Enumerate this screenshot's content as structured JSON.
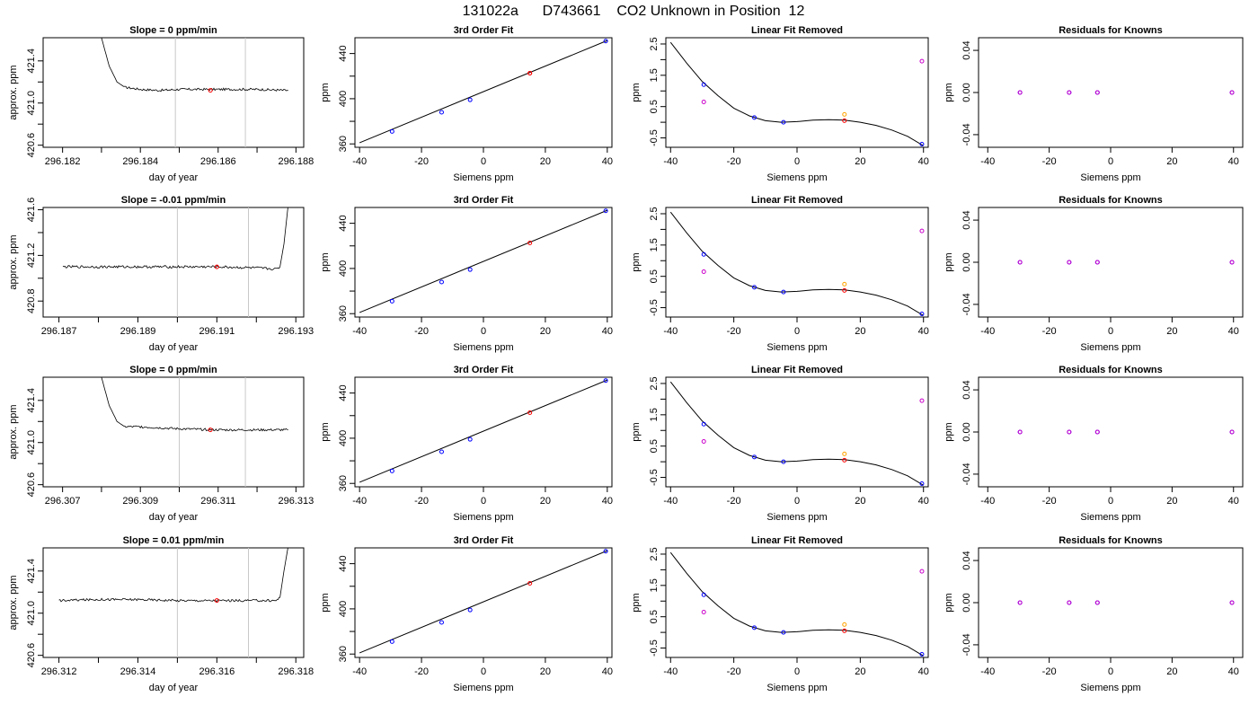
{
  "title": "131022a      D743661    CO2 Unknown in Position  12",
  "colors": {
    "trace": "#000000",
    "window": "#c8c8c8",
    "known": "#0000ff",
    "unknown": "#ff0000",
    "residual_a": "#cc00cc",
    "residual_b": "#ffa500"
  },
  "chart_data": [
    {
      "type": "line",
      "panel": "trace",
      "row": 0,
      "title": "Slope =  0  ppm/min",
      "xlabel": "day of year",
      "ylabel": "approx. ppm",
      "xlim": [
        296.1815,
        296.1882
      ],
      "ylim": [
        420.58,
        421.62
      ],
      "xticks": [
        296.182,
        296.184,
        296.186,
        296.188
      ],
      "xtick_labels": [
        "296.182",
        "296.184",
        "296.186",
        "296.188"
      ],
      "yticks": [
        420.6,
        421.0,
        421.4
      ],
      "ytick_labels": [
        "420.6",
        "421.0",
        "421.4"
      ],
      "trace_x": [
        296.183,
        296.1832,
        296.1834,
        296.1836,
        296.184,
        296.1845,
        296.185,
        296.186,
        296.187,
        296.1878
      ],
      "trace_y": [
        421.62,
        421.35,
        421.2,
        421.15,
        421.13,
        421.12,
        421.13,
        421.13,
        421.13,
        421.12
      ],
      "window_x": [
        296.1849,
        296.1867
      ],
      "marker": {
        "x": 296.1858,
        "y": 421.12
      }
    },
    {
      "type": "scatter",
      "panel": "fit",
      "row": 0,
      "title": "3rd Order Fit",
      "xlabel": "Siemens ppm",
      "ylabel": "ppm",
      "xlim": [
        -41.5,
        41.5
      ],
      "ylim": [
        357,
        454
      ],
      "xticks": [
        -40,
        -20,
        0,
        20,
        40
      ],
      "xtick_labels": [
        "-40",
        "-20",
        "0",
        "20",
        "40"
      ],
      "yticks": [
        360,
        400,
        440
      ],
      "ytick_labels": [
        "360",
        "400",
        "440"
      ],
      "knowns": {
        "x": [
          -29.5,
          -13.5,
          -4.3,
          39.5
        ],
        "y": [
          371,
          388,
          399,
          451
        ]
      },
      "unknown": {
        "x": [
          15,
          15
        ],
        "y": [
          422.6,
          422.6
        ]
      },
      "line": {
        "x": [
          -40,
          40
        ],
        "y": [
          361,
          451.5
        ]
      }
    },
    {
      "type": "scatter",
      "panel": "linear_removed",
      "row": 0,
      "title": "Linear Fit Removed",
      "xlabel": "Siemens ppm",
      "ylabel": "ppm",
      "xlim": [
        -41.5,
        41.5
      ],
      "ylim": [
        -0.8,
        2.7
      ],
      "xticks": [
        -40,
        -20,
        0,
        20,
        40
      ],
      "xtick_labels": [
        "-40",
        "-20",
        "0",
        "20",
        "40"
      ],
      "yticks": [
        -0.5,
        0.5,
        1.5,
        2.5
      ],
      "ytick_labels": [
        "-0.5",
        "0.5",
        "1.5",
        "2.5"
      ],
      "knowns": {
        "x": [
          -29.5,
          -13.5,
          -4.3,
          39.5
        ],
        "y": [
          1.2,
          0.15,
          0.0,
          -0.7
        ]
      },
      "unknown": {
        "x": [
          15
        ],
        "y": [
          0.05
        ]
      },
      "residual_a": {
        "x": [
          -29.5,
          39.5
        ],
        "y": [
          0.65,
          1.95
        ]
      },
      "residual_b": {
        "x": [
          15
        ],
        "y": [
          0.25
        ]
      },
      "curve": {
        "x": [
          -40,
          -35,
          -30,
          -25,
          -20,
          -15,
          -10,
          -5,
          0,
          5,
          10,
          15,
          20,
          25,
          30,
          35,
          40
        ],
        "y": [
          2.55,
          1.9,
          1.3,
          0.85,
          0.45,
          0.2,
          0.05,
          0.0,
          0.02,
          0.07,
          0.08,
          0.07,
          0.0,
          -0.1,
          -0.25,
          -0.45,
          -0.75
        ]
      }
    },
    {
      "type": "scatter",
      "panel": "residuals",
      "row": 0,
      "title": "Residuals for Knowns",
      "xlabel": "Siemens ppm",
      "ylabel": "ppm",
      "xlim": [
        -43,
        43
      ],
      "ylim": [
        -0.052,
        0.052
      ],
      "xticks": [
        -40,
        -20,
        0,
        20,
        40
      ],
      "xtick_labels": [
        "-40",
        "-20",
        "0",
        "20",
        "40"
      ],
      "yticks": [
        -0.04,
        0.0,
        0.04
      ],
      "ytick_labels": [
        "-0.04",
        "0.00",
        "0.04"
      ],
      "knowns": {
        "x": [
          -29.5,
          -13.5,
          -4.3,
          39.5
        ],
        "y": [
          0,
          0,
          0,
          0
        ]
      }
    },
    {
      "type": "line",
      "panel": "trace",
      "row": 1,
      "title": "Slope =  -0.01  ppm/min",
      "xlabel": "day of year",
      "ylabel": "approx. ppm",
      "xlim": [
        296.1866,
        296.1932
      ],
      "ylim": [
        420.66,
        421.62
      ],
      "xticks": [
        296.187,
        296.189,
        296.191,
        296.193
      ],
      "xtick_labels": [
        "296.187",
        "296.189",
        "296.191",
        "296.193"
      ],
      "yticks": [
        420.8,
        421.2,
        421.6
      ],
      "ytick_labels": [
        "420.8",
        "421.2",
        "421.6"
      ],
      "trace_x": [
        296.1871,
        296.188,
        296.189,
        296.19,
        296.191,
        296.192,
        296.1925,
        296.1926,
        296.1927,
        296.1928
      ],
      "trace_y": [
        421.1,
        421.1,
        421.1,
        421.1,
        421.1,
        421.09,
        421.08,
        421.1,
        421.3,
        421.62
      ],
      "window_x": [
        296.19,
        296.1918
      ],
      "marker": {
        "x": 296.191,
        "y": 421.1
      }
    },
    {
      "type": "scatter",
      "panel": "fit",
      "row": 1,
      "title": "3rd Order Fit",
      "xlabel": "Siemens ppm",
      "ylabel": "ppm",
      "xlim": [
        -41.5,
        41.5
      ],
      "ylim": [
        357,
        454
      ],
      "xticks": [
        -40,
        -20,
        0,
        20,
        40
      ],
      "xtick_labels": [
        "-40",
        "-20",
        "0",
        "20",
        "40"
      ],
      "yticks": [
        360,
        400,
        440
      ],
      "ytick_labels": [
        "360",
        "400",
        "440"
      ],
      "knowns": {
        "x": [
          -29.5,
          -13.5,
          -4.3,
          39.5
        ],
        "y": [
          371,
          388,
          399,
          451
        ]
      },
      "unknown": {
        "x": [
          15
        ],
        "y": [
          422.6
        ]
      },
      "line": {
        "x": [
          -40,
          40
        ],
        "y": [
          361,
          451.5
        ]
      }
    },
    {
      "type": "scatter",
      "panel": "linear_removed",
      "row": 1,
      "title": "Linear Fit Removed",
      "xlabel": "Siemens ppm",
      "ylabel": "ppm",
      "xlim": [
        -41.5,
        41.5
      ],
      "ylim": [
        -0.8,
        2.7
      ],
      "xticks": [
        -40,
        -20,
        0,
        20,
        40
      ],
      "xtick_labels": [
        "-40",
        "-20",
        "0",
        "20",
        "40"
      ],
      "yticks": [
        -0.5,
        0.5,
        1.5,
        2.5
      ],
      "ytick_labels": [
        "-0.5",
        "0.5",
        "1.5",
        "2.5"
      ],
      "knowns": {
        "x": [
          -29.5,
          -13.5,
          -4.3,
          39.5
        ],
        "y": [
          1.2,
          0.15,
          0.0,
          -0.7
        ]
      },
      "unknown": {
        "x": [
          15
        ],
        "y": [
          0.05
        ]
      },
      "residual_a": {
        "x": [
          -29.5,
          39.5
        ],
        "y": [
          0.65,
          1.95
        ]
      },
      "residual_b": {
        "x": [
          15
        ],
        "y": [
          0.25
        ]
      },
      "curve": {
        "x": [
          -40,
          -35,
          -30,
          -25,
          -20,
          -15,
          -10,
          -5,
          0,
          5,
          10,
          15,
          20,
          25,
          30,
          35,
          40
        ],
        "y": [
          2.55,
          1.9,
          1.3,
          0.85,
          0.45,
          0.2,
          0.05,
          0.0,
          0.02,
          0.07,
          0.08,
          0.07,
          0.0,
          -0.1,
          -0.25,
          -0.45,
          -0.75
        ]
      }
    },
    {
      "type": "scatter",
      "panel": "residuals",
      "row": 1,
      "title": "Residuals for Knowns",
      "xlabel": "Siemens ppm",
      "ylabel": "ppm",
      "xlim": [
        -43,
        43
      ],
      "ylim": [
        -0.052,
        0.052
      ],
      "xticks": [
        -40,
        -20,
        0,
        20,
        40
      ],
      "xtick_labels": [
        "-40",
        "-20",
        "0",
        "20",
        "40"
      ],
      "yticks": [
        -0.04,
        0.0,
        0.04
      ],
      "ytick_labels": [
        "-0.04",
        "0.00",
        "0.04"
      ],
      "knowns": {
        "x": [
          -29.5,
          -13.5,
          -4.3,
          39.5
        ],
        "y": [
          0,
          0,
          0,
          0
        ]
      }
    },
    {
      "type": "line",
      "panel": "trace",
      "row": 2,
      "title": "Slope =  0  ppm/min",
      "xlabel": "day of year",
      "ylabel": "approx. ppm",
      "xlim": [
        296.3065,
        296.3132
      ],
      "ylim": [
        420.58,
        421.62
      ],
      "xticks": [
        296.307,
        296.309,
        296.311,
        296.313
      ],
      "xtick_labels": [
        "296.307",
        "296.309",
        "296.311",
        "296.313"
      ],
      "yticks": [
        420.6,
        421.0,
        421.4
      ],
      "ytick_labels": [
        "420.6",
        "421.0",
        "421.4"
      ],
      "trace_x": [
        296.308,
        296.3082,
        296.3084,
        296.3086,
        296.309,
        296.3095,
        296.31,
        296.311,
        296.312,
        296.3128
      ],
      "trace_y": [
        421.62,
        421.35,
        421.2,
        421.15,
        421.15,
        421.14,
        421.13,
        421.12,
        421.12,
        421.12
      ],
      "window_x": [
        296.31,
        296.3117
      ],
      "marker": {
        "x": 296.3108,
        "y": 421.12
      }
    },
    {
      "type": "scatter",
      "panel": "fit",
      "row": 2,
      "title": "3rd Order Fit",
      "xlabel": "Siemens ppm",
      "ylabel": "ppm",
      "xlim": [
        -41.5,
        41.5
      ],
      "ylim": [
        357,
        454
      ],
      "xticks": [
        -40,
        -20,
        0,
        20,
        40
      ],
      "xtick_labels": [
        "-40",
        "-20",
        "0",
        "20",
        "40"
      ],
      "yticks": [
        360,
        400,
        440
      ],
      "ytick_labels": [
        "360",
        "400",
        "440"
      ],
      "knowns": {
        "x": [
          -29.5,
          -13.5,
          -4.3,
          39.5
        ],
        "y": [
          371,
          388,
          399,
          451
        ]
      },
      "unknown": {
        "x": [
          15
        ],
        "y": [
          422.6
        ]
      },
      "line": {
        "x": [
          -40,
          40
        ],
        "y": [
          361,
          451.5
        ]
      }
    },
    {
      "type": "scatter",
      "panel": "linear_removed",
      "row": 2,
      "title": "Linear Fit Removed",
      "xlabel": "Siemens ppm",
      "ylabel": "ppm",
      "xlim": [
        -41.5,
        41.5
      ],
      "ylim": [
        -0.8,
        2.7
      ],
      "xticks": [
        -40,
        -20,
        0,
        20,
        40
      ],
      "xtick_labels": [
        "-40",
        "-20",
        "0",
        "20",
        "40"
      ],
      "yticks": [
        -0.5,
        0.5,
        1.5,
        2.5
      ],
      "ytick_labels": [
        "-0.5",
        "0.5",
        "1.5",
        "2.5"
      ],
      "knowns": {
        "x": [
          -29.5,
          -13.5,
          -4.3,
          39.5
        ],
        "y": [
          1.2,
          0.15,
          0.0,
          -0.7
        ]
      },
      "unknown": {
        "x": [
          15
        ],
        "y": [
          0.05
        ]
      },
      "residual_a": {
        "x": [
          -29.5,
          39.5
        ],
        "y": [
          0.65,
          1.95
        ]
      },
      "residual_b": {
        "x": [
          15
        ],
        "y": [
          0.25
        ]
      },
      "curve": {
        "x": [
          -40,
          -35,
          -30,
          -25,
          -20,
          -15,
          -10,
          -5,
          0,
          5,
          10,
          15,
          20,
          25,
          30,
          35,
          40
        ],
        "y": [
          2.55,
          1.9,
          1.3,
          0.85,
          0.45,
          0.2,
          0.05,
          0.0,
          0.02,
          0.07,
          0.08,
          0.07,
          0.0,
          -0.1,
          -0.25,
          -0.45,
          -0.75
        ]
      }
    },
    {
      "type": "scatter",
      "panel": "residuals",
      "row": 2,
      "title": "Residuals for Knowns",
      "xlabel": "Siemens ppm",
      "ylabel": "ppm",
      "xlim": [
        -43,
        43
      ],
      "ylim": [
        -0.052,
        0.052
      ],
      "xticks": [
        -40,
        -20,
        0,
        20,
        40
      ],
      "xtick_labels": [
        "-40",
        "-20",
        "0",
        "20",
        "40"
      ],
      "yticks": [
        -0.04,
        0.0,
        0.04
      ],
      "ytick_labels": [
        "-0.04",
        "0.00",
        "0.04"
      ],
      "knowns": {
        "x": [
          -29.5,
          -13.5,
          -4.3,
          39.5
        ],
        "y": [
          0,
          0,
          0,
          0
        ]
      }
    },
    {
      "type": "line",
      "panel": "trace",
      "row": 3,
      "title": "Slope =  0.01  ppm/min",
      "xlabel": "day of year",
      "ylabel": "approx. ppm",
      "xlim": [
        296.3116,
        296.3182
      ],
      "ylim": [
        420.58,
        421.62
      ],
      "xticks": [
        296.312,
        296.314,
        296.316,
        296.318
      ],
      "xtick_labels": [
        "296.312",
        "296.314",
        "296.316",
        "296.318"
      ],
      "yticks": [
        420.6,
        421.0,
        421.4
      ],
      "ytick_labels": [
        "420.6",
        "421.0",
        "421.4"
      ],
      "trace_x": [
        296.312,
        296.313,
        296.314,
        296.315,
        296.316,
        296.317,
        296.3175,
        296.3176,
        296.3177,
        296.3178
      ],
      "trace_y": [
        421.12,
        421.13,
        421.13,
        421.12,
        421.12,
        421.12,
        421.12,
        421.15,
        421.4,
        421.62
      ],
      "window_x": [
        296.315,
        296.3168
      ],
      "marker": {
        "x": 296.316,
        "y": 421.12
      }
    },
    {
      "type": "scatter",
      "panel": "fit",
      "row": 3,
      "title": "3rd Order Fit",
      "xlabel": "Siemens ppm",
      "ylabel": "ppm",
      "xlim": [
        -41.5,
        41.5
      ],
      "ylim": [
        357,
        454
      ],
      "xticks": [
        -40,
        -20,
        0,
        20,
        40
      ],
      "xtick_labels": [
        "-40",
        "-20",
        "0",
        "20",
        "40"
      ],
      "yticks": [
        360,
        400,
        440
      ],
      "ytick_labels": [
        "360",
        "400",
        "440"
      ],
      "knowns": {
        "x": [
          -29.5,
          -13.5,
          -4.3,
          39.5
        ],
        "y": [
          371,
          388,
          399,
          451
        ]
      },
      "unknown": {
        "x": [
          15
        ],
        "y": [
          422.6
        ]
      },
      "line": {
        "x": [
          -40,
          40
        ],
        "y": [
          361,
          451.5
        ]
      }
    },
    {
      "type": "scatter",
      "panel": "linear_removed",
      "row": 3,
      "title": "Linear Fit Removed",
      "xlabel": "Siemens ppm",
      "ylabel": "ppm",
      "xlim": [
        -41.5,
        41.5
      ],
      "ylim": [
        -0.8,
        2.7
      ],
      "xticks": [
        -40,
        -20,
        0,
        20,
        40
      ],
      "xtick_labels": [
        "-40",
        "-20",
        "0",
        "20",
        "40"
      ],
      "yticks": [
        -0.5,
        0.5,
        1.5,
        2.5
      ],
      "ytick_labels": [
        "-0.5",
        "0.5",
        "1.5",
        "2.5"
      ],
      "knowns": {
        "x": [
          -29.5,
          -13.5,
          -4.3,
          39.5
        ],
        "y": [
          1.2,
          0.15,
          0.0,
          -0.7
        ]
      },
      "unknown": {
        "x": [
          15
        ],
        "y": [
          0.05
        ]
      },
      "residual_a": {
        "x": [
          -29.5,
          39.5
        ],
        "y": [
          0.65,
          1.95
        ]
      },
      "residual_b": {
        "x": [
          15
        ],
        "y": [
          0.25
        ]
      },
      "curve": {
        "x": [
          -40,
          -35,
          -30,
          -25,
          -20,
          -15,
          -10,
          -5,
          0,
          5,
          10,
          15,
          20,
          25,
          30,
          35,
          40
        ],
        "y": [
          2.55,
          1.9,
          1.3,
          0.85,
          0.45,
          0.2,
          0.05,
          0.0,
          0.02,
          0.07,
          0.08,
          0.07,
          0.0,
          -0.1,
          -0.25,
          -0.45,
          -0.75
        ]
      }
    },
    {
      "type": "scatter",
      "panel": "residuals",
      "row": 3,
      "title": "Residuals for Knowns",
      "xlabel": "Siemens ppm",
      "ylabel": "ppm",
      "xlim": [
        -43,
        43
      ],
      "ylim": [
        -0.052,
        0.052
      ],
      "xticks": [
        -40,
        -20,
        0,
        20,
        40
      ],
      "xtick_labels": [
        "-40",
        "-20",
        "0",
        "20",
        "40"
      ],
      "yticks": [
        -0.04,
        0.0,
        0.04
      ],
      "ytick_labels": [
        "-0.04",
        "0.00",
        "0.04"
      ],
      "knowns": {
        "x": [
          -29.5,
          -13.5,
          -4.3,
          39.5
        ],
        "y": [
          0,
          0,
          0,
          0
        ]
      }
    }
  ]
}
